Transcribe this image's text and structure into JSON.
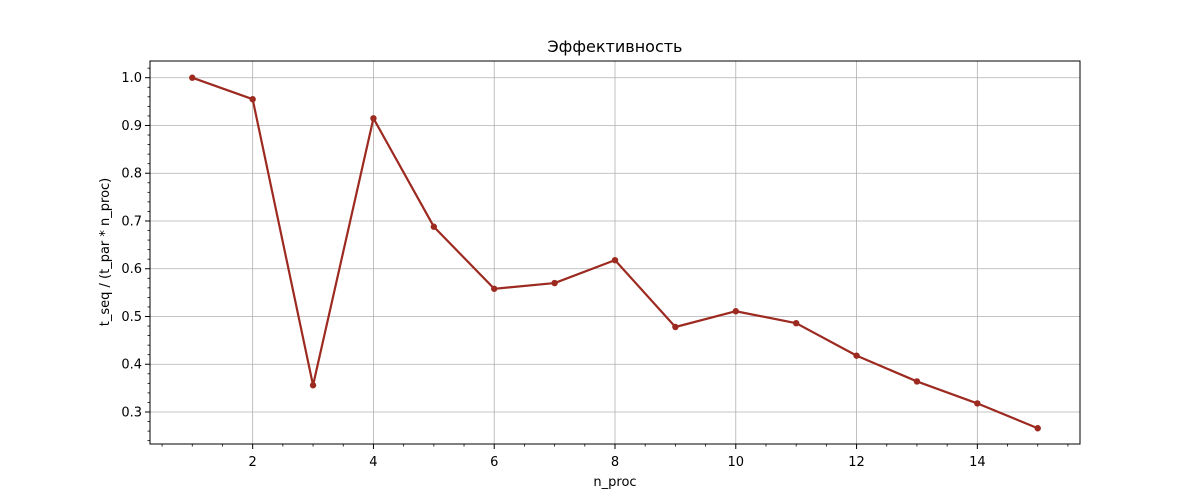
{
  "chart_data": {
    "type": "line",
    "title": "Эффективность",
    "xlabel": "n_proc",
    "ylabel": "t_seq / (t_par * n_proc)",
    "xlim": [
      0.3,
      15.7
    ],
    "ylim": [
      0.233,
      1.035
    ],
    "x_ticks": [
      2,
      4,
      6,
      8,
      10,
      12,
      14
    ],
    "x_tick_labels": [
      "2",
      "4",
      "6",
      "8",
      "10",
      "12",
      "14"
    ],
    "y_ticks": [
      0.3,
      0.4,
      0.5,
      0.6,
      0.7,
      0.8,
      0.9,
      1.0
    ],
    "y_tick_labels": [
      "0.3",
      "0.4",
      "0.5",
      "0.6",
      "0.7",
      "0.8",
      "0.9",
      "1.0"
    ],
    "grid": true,
    "series": [
      {
        "color": "#9c2a20",
        "x": [
          1,
          2,
          3,
          4,
          5,
          6,
          7,
          8,
          9,
          10,
          11,
          12,
          13,
          14,
          15
        ],
        "y": [
          1.0,
          0.955,
          0.356,
          0.915,
          0.688,
          0.558,
          0.57,
          0.618,
          0.478,
          0.511,
          0.486,
          0.418,
          0.364,
          0.318,
          0.266
        ]
      }
    ]
  }
}
